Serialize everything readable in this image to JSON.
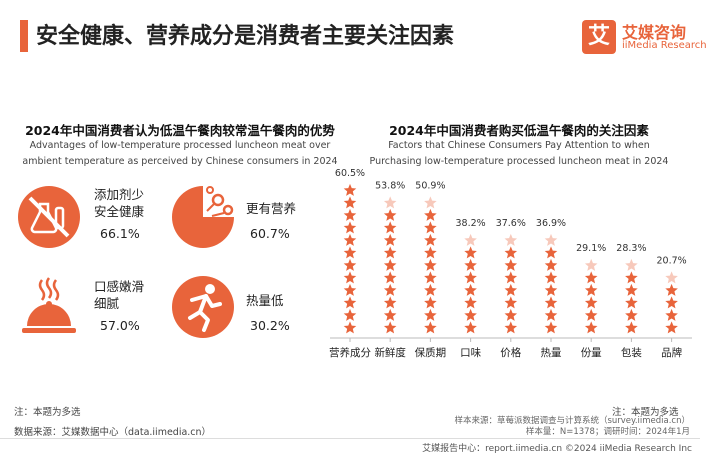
{
  "header": {
    "title": "安全健康、营养成分是消费者主要关注因素",
    "logo_mark": "艾",
    "logo_cn": "艾媒咨询",
    "logo_en": "iiMedia Research"
  },
  "left_panel": {
    "title": "2024年中国消费者认为低温午餐肉较常温午餐肉的优势",
    "subtitle_line1": "Advantages of low-temperature processed luncheon meat over",
    "subtitle_line2": "ambient temperature as perceived by Chinese consumers in 2024",
    "items": [
      {
        "label_line1": "添加剂少",
        "label_line2": "安全健康",
        "value": "66.1%",
        "icon": "no-additives-icon"
      },
      {
        "label_line1": "更有营养",
        "label_line2": "",
        "value": "60.7%",
        "icon": "nutrition-icon"
      },
      {
        "label_line1": "口感嫩滑",
        "label_line2": "细腻",
        "value": "57.0%",
        "icon": "cloche-icon"
      },
      {
        "label_line1": "热量低",
        "label_line2": "",
        "value": "30.2%",
        "icon": "runner-icon"
      }
    ]
  },
  "right_panel": {
    "title": "2024年中国消费者购买低温午餐肉的关注因素",
    "subtitle_line1": "Factors that Chinese Consumers Pay Attention to when",
    "subtitle_line2": "Purchasing low-temperature processed luncheon meat in 2024"
  },
  "chart_data": {
    "type": "bar",
    "title": "2024年中国消费者购买低温午餐肉的关注因素",
    "categories": [
      "营养成分",
      "新鲜度",
      "保质期",
      "口味",
      "价格",
      "热量",
      "份量",
      "包装",
      "品牌"
    ],
    "values": [
      60.5,
      53.8,
      50.9,
      38.2,
      37.6,
      36.9,
      29.1,
      28.3,
      20.7
    ],
    "value_labels": [
      "60.5%",
      "53.8%",
      "50.9%",
      "38.2%",
      "37.6%",
      "36.9%",
      "29.1%",
      "28.3%",
      "20.7%"
    ],
    "unit": "%",
    "mark": "star",
    "ylim": [
      0,
      70
    ],
    "grid": false,
    "color": "#e8643b"
  },
  "footer": {
    "note_left": "注：本题为多选",
    "source_left": "数据来源：艾媒数据中心（data.iimedia.cn）",
    "note_right": "注：本题为多选",
    "sample_line1": "样本来源：草莓派数据调查与计算系统（survey.iimedia.cn）",
    "sample_line2": "样本量：N=1378；调研时间：2024年1月",
    "bottom": "艾媒报告中心：report.iimedia.cn    ©2024  iiMedia Research  Inc"
  },
  "colors": {
    "accent": "#e8643b"
  }
}
